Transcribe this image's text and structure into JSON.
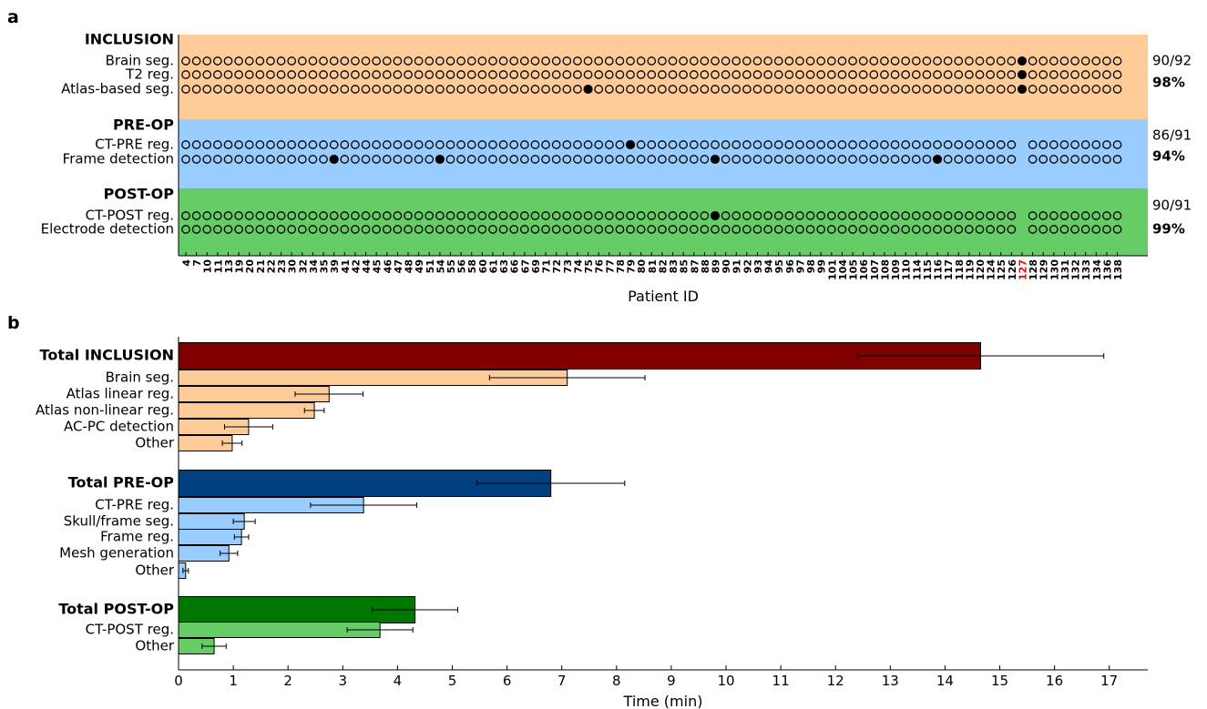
{
  "chart_data": [
    {
      "type": "scatter",
      "panel_label": "a",
      "xlabel": "Patient ID",
      "patient_ids": [
        "4",
        "7",
        "10",
        "11",
        "13",
        "19",
        "20",
        "21",
        "22",
        "23",
        "30",
        "32",
        "34",
        "35",
        "39",
        "41",
        "42",
        "44",
        "45",
        "46",
        "47",
        "48",
        "49",
        "51",
        "54",
        "55",
        "56",
        "58",
        "60",
        "61",
        "63",
        "66",
        "67",
        "69",
        "71",
        "72",
        "73",
        "74",
        "75",
        "76",
        "77",
        "78",
        "79",
        "80",
        "81",
        "82",
        "83",
        "85",
        "87",
        "88",
        "89",
        "90",
        "91",
        "92",
        "93",
        "94",
        "95",
        "96",
        "97",
        "98",
        "99",
        "101",
        "104",
        "105",
        "106",
        "107",
        "108",
        "109",
        "110",
        "114",
        "115",
        "116",
        "117",
        "118",
        "119",
        "120",
        "124",
        "125",
        "126",
        "127",
        "128",
        "129",
        "130",
        "131",
        "132",
        "133",
        "134",
        "136",
        "138"
      ],
      "highlighted_patient": "127",
      "groups": [
        {
          "name": "INCLUSION",
          "color": "#ffcc99",
          "count": "90/92",
          "percent": "98%",
          "rows": [
            {
              "label": "Brain seg.",
              "failures": [
                "127"
              ],
              "missing": []
            },
            {
              "label": "T2 reg.",
              "failures": [
                "127"
              ],
              "missing": []
            },
            {
              "label": "Atlas-based seg.",
              "failures": [
                "75",
                "127"
              ],
              "missing": []
            }
          ]
        },
        {
          "name": "PRE-OP",
          "color": "#99ccff",
          "count": "86/91",
          "percent": "94%",
          "rows": [
            {
              "label": "CT-PRE reg.",
              "failures": [
                "79"
              ],
              "missing": [
                "127"
              ]
            },
            {
              "label": "Frame detection",
              "failures": [
                "39",
                "54",
                "89",
                "116"
              ],
              "missing": [
                "127"
              ]
            }
          ]
        },
        {
          "name": "POST-OP",
          "color": "#66cc66",
          "count": "90/91",
          "percent": "99%",
          "rows": [
            {
              "label": "CT-POST reg.",
              "failures": [
                "89"
              ],
              "missing": [
                "127"
              ]
            },
            {
              "label": "Electrode detection",
              "failures": [],
              "missing": [
                "127"
              ]
            }
          ]
        }
      ]
    },
    {
      "type": "bar",
      "orientation": "horizontal",
      "panel_label": "b",
      "xlabel": "Time (min)",
      "xlim": [
        0,
        17.7
      ],
      "xticks": [
        "0",
        "1",
        "2",
        "3",
        "4",
        "5",
        "6",
        "7",
        "8",
        "9",
        "10",
        "11",
        "12",
        "13",
        "14",
        "15",
        "16",
        "17"
      ],
      "groups": [
        {
          "name": "INCLUSION",
          "bars": [
            {
              "label": "Total INCLUSION",
              "value": 14.65,
              "error": 2.25,
              "total": true,
              "color": "#800000"
            },
            {
              "label": "Brain seg.",
              "value": 7.1,
              "error": 1.42,
              "color": "#ffcc99"
            },
            {
              "label": "Atlas linear reg.",
              "value": 2.75,
              "error": 0.62,
              "color": "#ffcc99"
            },
            {
              "label": "Atlas non-linear reg.",
              "value": 2.48,
              "error": 0.18,
              "color": "#ffcc99"
            },
            {
              "label": "AC-PC detection",
              "value": 1.28,
              "error": 0.44,
              "color": "#ffcc99"
            },
            {
              "label": "Other",
              "value": 0.98,
              "error": 0.18,
              "color": "#ffcc99"
            }
          ]
        },
        {
          "name": "PRE-OP",
          "bars": [
            {
              "label": "Total PRE-OP",
              "value": 6.8,
              "error": 1.35,
              "total": true,
              "color": "#003f80"
            },
            {
              "label": "CT-PRE reg.",
              "value": 3.38,
              "error": 0.97,
              "color": "#99ccff"
            },
            {
              "label": "Skull/frame seg.",
              "value": 1.2,
              "error": 0.2,
              "color": "#99ccff"
            },
            {
              "label": "Frame reg.",
              "value": 1.15,
              "error": 0.13,
              "color": "#99ccff"
            },
            {
              "label": "Mesh generation",
              "value": 0.92,
              "error": 0.16,
              "color": "#99ccff"
            },
            {
              "label": "Other",
              "value": 0.13,
              "error": 0.05,
              "color": "#99ccff"
            }
          ]
        },
        {
          "name": "POST-OP",
          "bars": [
            {
              "label": "Total POST-OP",
              "value": 4.32,
              "error": 0.78,
              "total": true,
              "color": "#007700"
            },
            {
              "label": "CT-POST reg.",
              "value": 3.68,
              "error": 0.6,
              "color": "#66cc66"
            },
            {
              "label": "Other",
              "value": 0.65,
              "error": 0.22,
              "color": "#66cc66"
            }
          ]
        }
      ]
    }
  ]
}
